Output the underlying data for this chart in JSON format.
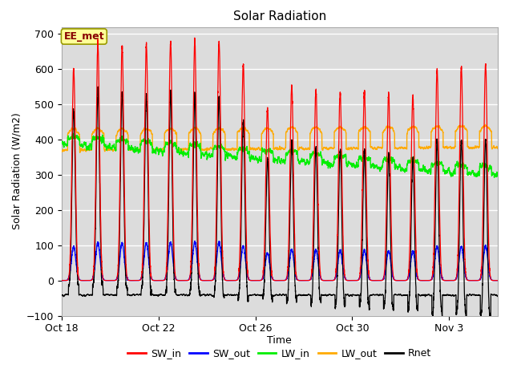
{
  "title": "Solar Radiation",
  "xlabel": "Time",
  "ylabel": "Solar Radiation (W/m2)",
  "ylim": [
    -100,
    720
  ],
  "yticks": [
    -100,
    0,
    100,
    200,
    300,
    400,
    500,
    600,
    700
  ],
  "num_days": 18,
  "points_per_day": 288,
  "colors": {
    "SW_in": "#ff0000",
    "SW_out": "#0000ff",
    "LW_in": "#00ee00",
    "LW_out": "#ffaa00",
    "Rnet": "#000000"
  },
  "legend_labels": [
    "SW_in",
    "SW_out",
    "LW_in",
    "LW_out",
    "Rnet"
  ],
  "annotation_text": "EE_met",
  "plot_bg_color": "#dcdcdc",
  "grid_color": "#ffffff",
  "xtick_labels": [
    "Oct 18",
    "Oct 22",
    "Oct 26",
    "Oct 30",
    "Nov 3"
  ],
  "xtick_positions": [
    0,
    4,
    8,
    12,
    16
  ]
}
